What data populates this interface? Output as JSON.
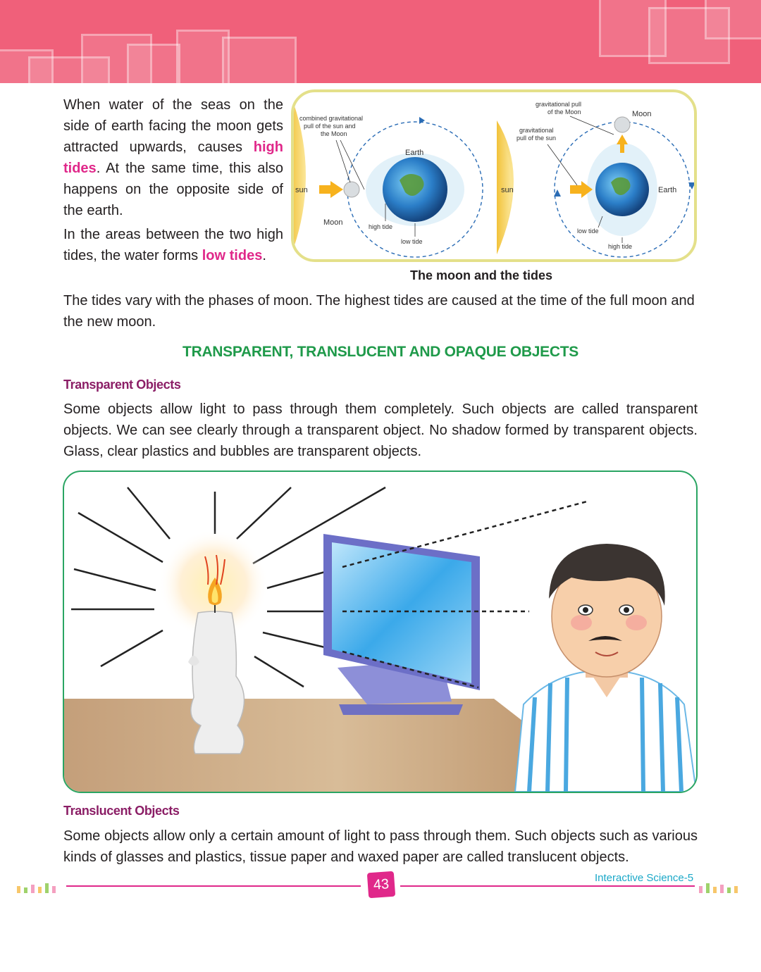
{
  "intro": {
    "p1_a": "When water of the seas on the side of earth facing the moon gets attracted upwards, causes ",
    "p1_hl": "high tides",
    "p1_b": ". At the same time, this also happens on the opposite side of the earth.",
    "p2_a": "In the areas between the two high tides, the water forms ",
    "p2_hl": "low tides",
    "p2_b": "."
  },
  "tides_figure": {
    "left": {
      "combined": [
        "combined gravitational",
        "pull of the sun and",
        "the Moon"
      ],
      "earth": "Earth",
      "sun": "sun",
      "moon": "Moon",
      "high_tide": "high tide",
      "low_tide": "low tide"
    },
    "right": {
      "moon_pull": [
        "gravitational pull",
        "of the Moon"
      ],
      "sun_pull": [
        "gravitational",
        "pull of the sun"
      ],
      "moon": "Moon",
      "sun": "sun",
      "earth": "Earth",
      "low_tide": "low tide",
      "high_tide": "high tide"
    },
    "caption": "The moon and the tides"
  },
  "phases_text": "The tides vary with the phases of moon. The highest tides are caused at the time of the full moon and the new moon.",
  "section_heading": "TRANSPARENT, TRANSLUCENT AND OPAQUE OBJECTS",
  "transparent": {
    "title": "Transparent Objects",
    "text": "Some objects allow light to pass through them completely. Such objects are called transparent objects. We can see clearly through a transparent object. No shadow formed by transparent objects. Glass, clear plastics and bubbles are transparent objects."
  },
  "translucent": {
    "title": "Translucent Objects",
    "text": "Some objects allow only a certain amount of light to pass through them. Such objects such as various kinds of glasses and plastics, tissue paper and waxed paper are called translucent objects."
  },
  "footer": {
    "page_number": "43",
    "book_title": "Interactive Science-5"
  },
  "colors": {
    "header": "#f0607a",
    "highlight": "#e0288a",
    "heading_green": "#1f9a4a",
    "subhead": "#8b1e66"
  }
}
